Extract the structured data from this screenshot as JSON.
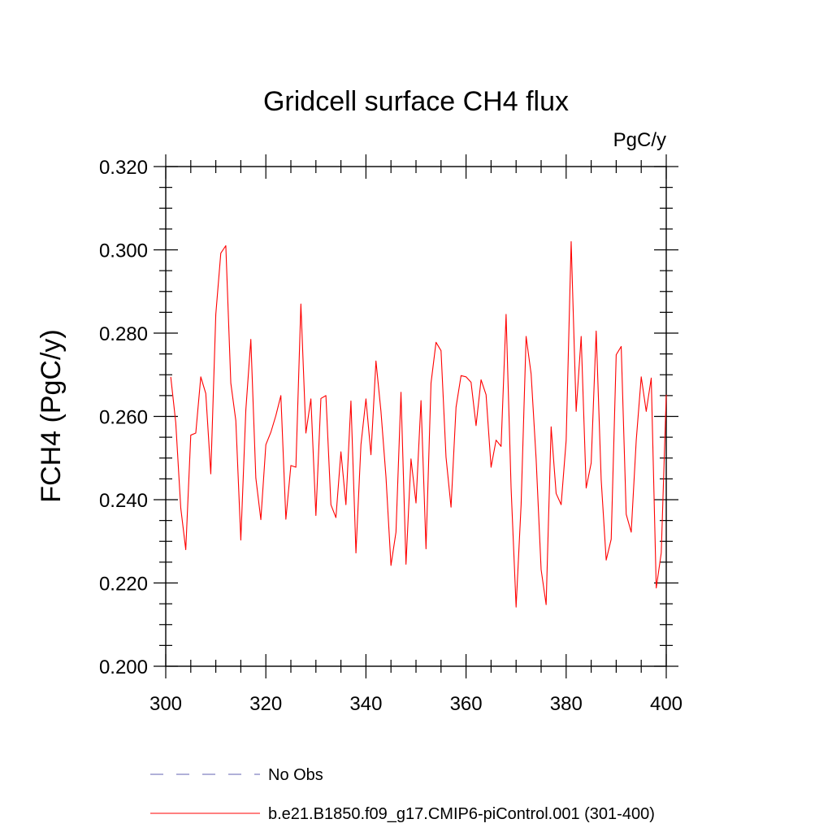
{
  "chart_data": {
    "type": "line",
    "title": "Gridcell surface CH4 flux",
    "units": "PgC/y",
    "xlabel": "",
    "ylabel": "FCH4  (PgC/y)",
    "xlim": [
      300,
      400
    ],
    "ylim": [
      0.2,
      0.32
    ],
    "x_ticks": [
      300,
      320,
      340,
      360,
      380,
      400
    ],
    "x_tick_labels": [
      "300",
      "320",
      "340",
      "360",
      "380",
      "400"
    ],
    "y_ticks": [
      0.2,
      0.22,
      0.24,
      0.26,
      0.28,
      0.3,
      0.32
    ],
    "y_tick_labels": [
      "0.200",
      "0.220",
      "0.240",
      "0.260",
      "0.280",
      "0.300",
      "0.320"
    ],
    "x_minor_step": 5,
    "y_minor_step": 0.005,
    "grid": false,
    "legend_position": "bottom",
    "legend": [
      {
        "name": "No Obs",
        "color": "#8080c0",
        "dash": "dashed"
      },
      {
        "name": "b.e21.B1850.f09_g17.CMIP6-piControl.001 (301-400)",
        "color": "#ff0000",
        "dash": "solid"
      }
    ],
    "series": [
      {
        "name": "b.e21.B1850.f09_g17.CMIP6-piControl.001 (301-400)",
        "color": "#ff0000",
        "x": [
          301,
          302,
          303,
          304,
          305,
          306,
          307,
          308,
          309,
          310,
          311,
          312,
          313,
          314,
          315,
          316,
          317,
          318,
          319,
          320,
          321,
          322,
          323,
          324,
          325,
          326,
          327,
          328,
          329,
          330,
          331,
          332,
          333,
          334,
          335,
          336,
          337,
          338,
          339,
          340,
          341,
          342,
          343,
          344,
          345,
          346,
          347,
          348,
          349,
          350,
          351,
          352,
          353,
          354,
          355,
          356,
          357,
          358,
          359,
          360,
          361,
          362,
          363,
          364,
          365,
          366,
          367,
          368,
          369,
          370,
          371,
          372,
          373,
          374,
          375,
          376,
          377,
          378,
          379,
          380,
          381,
          382,
          383,
          384,
          385,
          386,
          387,
          388,
          389,
          390,
          391,
          392,
          393,
          394,
          395,
          396,
          397,
          398,
          399,
          400
        ],
        "values": [
          0.2695,
          0.2585,
          0.238,
          0.228,
          0.2555,
          0.256,
          0.2695,
          0.2655,
          0.2462,
          0.2845,
          0.2992,
          0.301,
          0.268,
          0.259,
          0.2303,
          0.2615,
          0.2785,
          0.2452,
          0.2352,
          0.2532,
          0.2562,
          0.2602,
          0.265,
          0.2353,
          0.2482,
          0.2478,
          0.287,
          0.256,
          0.2642,
          0.2362,
          0.2643,
          0.265,
          0.2388,
          0.2357,
          0.2515,
          0.2388,
          0.2637,
          0.2272,
          0.2532,
          0.2642,
          0.2508,
          0.2733,
          0.2612,
          0.2455,
          0.2242,
          0.2322,
          0.2658,
          0.2245,
          0.2498,
          0.2392,
          0.2638,
          0.2282,
          0.268,
          0.2778,
          0.2758,
          0.2502,
          0.2382,
          0.2622,
          0.2698,
          0.2695,
          0.2682,
          0.2578,
          0.2688,
          0.2652,
          0.2478,
          0.2543,
          0.2528,
          0.2845,
          0.2428,
          0.2142,
          0.2388,
          0.2792,
          0.2702,
          0.2498,
          0.2232,
          0.2148,
          0.2575,
          0.2415,
          0.2388,
          0.2542,
          0.302,
          0.2612,
          0.2792,
          0.2428,
          0.2488,
          0.2805,
          0.2448,
          0.2255,
          0.2305,
          0.2748,
          0.2768,
          0.2365,
          0.2322,
          0.2542,
          0.2695,
          0.2612,
          0.2692,
          0.2188,
          0.2272,
          0.2652
        ]
      }
    ]
  }
}
